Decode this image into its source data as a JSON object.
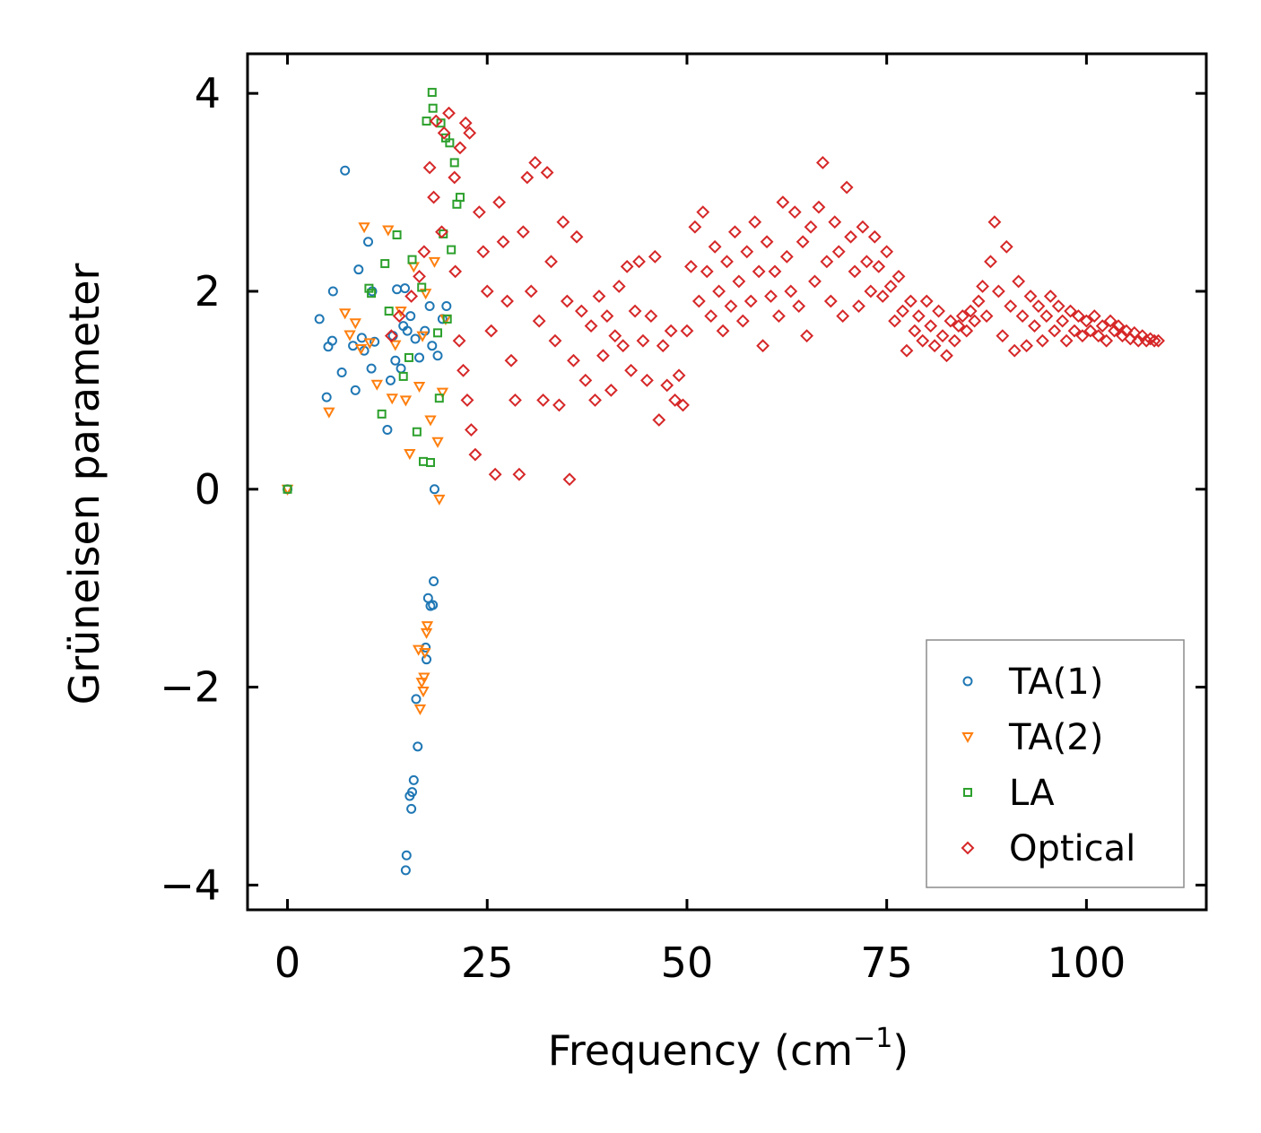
{
  "chart_data": {
    "type": "scatter",
    "title": "",
    "xlabel": "Frequency (cm",
    "xlabel_sup": "−1",
    "xlabel_end": ")",
    "ylabel": "Grüneisen parameter",
    "xlim": [
      -5,
      115
    ],
    "ylim": [
      -4.25,
      4.4
    ],
    "xticks": [
      0,
      25,
      50,
      75,
      100
    ],
    "yticks": [
      -4,
      -2,
      0,
      2,
      4
    ],
    "xtick_labels": [
      "0",
      "25",
      "50",
      "75",
      "100"
    ],
    "ytick_labels": [
      "−4",
      "−2",
      "0",
      "2",
      "4"
    ],
    "grid": false,
    "legend_position": "lower-right",
    "series": [
      {
        "name": "TA(1)",
        "marker": "circle",
        "color": "#1f77b4",
        "points": [
          [
            0,
            0
          ],
          [
            4,
            1.72
          ],
          [
            4.9,
            0.93
          ],
          [
            5.1,
            1.44
          ],
          [
            5.6,
            1.5
          ],
          [
            5.7,
            2.0
          ],
          [
            6.8,
            1.18
          ],
          [
            7.2,
            3.22
          ],
          [
            8.2,
            1.45
          ],
          [
            8.5,
            1.0
          ],
          [
            8.9,
            2.22
          ],
          [
            9.3,
            1.53
          ],
          [
            9.6,
            1.4
          ],
          [
            10.1,
            2.5
          ],
          [
            10.5,
            1.22
          ],
          [
            10.6,
            2.0
          ],
          [
            10.9,
            1.49
          ],
          [
            12.5,
            0.6
          ],
          [
            12.9,
            1.1
          ],
          [
            13.2,
            1.55
          ],
          [
            13.5,
            1.3
          ],
          [
            13.7,
            2.02
          ],
          [
            14.2,
            1.22
          ],
          [
            14.5,
            1.65
          ],
          [
            14.7,
            2.03
          ],
          [
            15,
            1.6
          ],
          [
            15.4,
            1.75
          ],
          [
            16,
            1.52
          ],
          [
            16.5,
            1.33
          ],
          [
            17.2,
            1.6
          ],
          [
            17.8,
            1.85
          ],
          [
            18.1,
            1.45
          ],
          [
            18.4,
            0.0
          ],
          [
            18.8,
            1.35
          ],
          [
            19.4,
            1.72
          ],
          [
            19.9,
            1.85
          ],
          [
            14.8,
            -3.85
          ],
          [
            14.9,
            -3.7
          ],
          [
            15.3,
            -3.1
          ],
          [
            15.5,
            -3.23
          ],
          [
            15.6,
            -3.06
          ],
          [
            15.8,
            -2.94
          ],
          [
            16.1,
            -2.12
          ],
          [
            16.3,
            -2.6
          ],
          [
            17.3,
            -1.6
          ],
          [
            17.4,
            -1.72
          ],
          [
            17.6,
            -1.1
          ],
          [
            17.9,
            -1.18
          ],
          [
            18.2,
            -1.17
          ],
          [
            18.3,
            -0.93
          ]
        ]
      },
      {
        "name": "TA(2)",
        "marker": "triangle-down",
        "color": "#ff7f0e",
        "points": [
          [
            0,
            0
          ],
          [
            5.2,
            0.78
          ],
          [
            7.2,
            1.78
          ],
          [
            7.8,
            1.56
          ],
          [
            8.5,
            1.68
          ],
          [
            9.2,
            1.42
          ],
          [
            9.6,
            2.65
          ],
          [
            10.3,
            1.48
          ],
          [
            11.2,
            1.06
          ],
          [
            12.6,
            2.62
          ],
          [
            13.1,
            0.92
          ],
          [
            13.5,
            1.46
          ],
          [
            14.2,
            1.8
          ],
          [
            14.8,
            0.9
          ],
          [
            15.3,
            0.36
          ],
          [
            15.8,
            2.25
          ],
          [
            16.5,
            1.04
          ],
          [
            16.9,
            1.55
          ],
          [
            17.3,
            1.98
          ],
          [
            17.9,
            0.7
          ],
          [
            18.4,
            2.3
          ],
          [
            18.8,
            0.48
          ],
          [
            19.0,
            -0.1
          ],
          [
            19.4,
            0.98
          ],
          [
            19.8,
            1.72
          ],
          [
            16.4,
            -1.62
          ],
          [
            16.6,
            -2.22
          ],
          [
            16.8,
            -1.95
          ],
          [
            17.0,
            -2.04
          ],
          [
            17.1,
            -1.9
          ],
          [
            17.2,
            -1.65
          ],
          [
            17.4,
            -1.45
          ],
          [
            17.5,
            -1.38
          ]
        ]
      },
      {
        "name": "LA",
        "marker": "square",
        "color": "#2ca02c",
        "points": [
          [
            0,
            0
          ],
          [
            10.2,
            2.03
          ],
          [
            10.5,
            1.98
          ],
          [
            11.8,
            0.76
          ],
          [
            12.2,
            2.28
          ],
          [
            12.7,
            1.8
          ],
          [
            13.7,
            2.57
          ],
          [
            14.5,
            1.14
          ],
          [
            15.2,
            1.33
          ],
          [
            15.6,
            2.32
          ],
          [
            16.2,
            0.58
          ],
          [
            16.8,
            2.04
          ],
          [
            17.0,
            0.28
          ],
          [
            17.4,
            3.72
          ],
          [
            17.9,
            0.27
          ],
          [
            18.1,
            4.01
          ],
          [
            18.2,
            3.85
          ],
          [
            18.8,
            1.58
          ],
          [
            19.0,
            0.92
          ],
          [
            19.2,
            3.7
          ],
          [
            19.5,
            2.58
          ],
          [
            19.8,
            3.55
          ],
          [
            20.0,
            1.72
          ],
          [
            20.3,
            3.5
          ],
          [
            20.5,
            2.42
          ],
          [
            20.9,
            3.3
          ],
          [
            21.2,
            2.88
          ],
          [
            21.6,
            2.95
          ]
        ]
      },
      {
        "name": "Optical",
        "marker": "diamond",
        "color": "#d62728",
        "points": [
          [
            13,
            1.55
          ],
          [
            14,
            1.75
          ],
          [
            15.5,
            1.95
          ],
          [
            16.5,
            2.15
          ],
          [
            17.1,
            2.4
          ],
          [
            17.8,
            3.25
          ],
          [
            18.3,
            2.95
          ],
          [
            18.6,
            3.72
          ],
          [
            19.3,
            2.6
          ],
          [
            19.6,
            3.6
          ],
          [
            20.2,
            3.8
          ],
          [
            20.9,
            3.15
          ],
          [
            21.6,
            3.45
          ],
          [
            22.3,
            3.7
          ],
          [
            22.8,
            3.6
          ],
          [
            21,
            2.2
          ],
          [
            21.5,
            1.5
          ],
          [
            22,
            1.2
          ],
          [
            22.5,
            0.9
          ],
          [
            23,
            0.6
          ],
          [
            23.5,
            0.35
          ],
          [
            24,
            2.8
          ],
          [
            24.5,
            2.4
          ],
          [
            25,
            2.0
          ],
          [
            25.5,
            1.6
          ],
          [
            26,
            0.15
          ],
          [
            26.5,
            2.9
          ],
          [
            27,
            2.5
          ],
          [
            27.5,
            1.9
          ],
          [
            28,
            1.3
          ],
          [
            28.5,
            0.9
          ],
          [
            29,
            0.15
          ],
          [
            29.5,
            2.6
          ],
          [
            30,
            3.15
          ],
          [
            30.5,
            2.0
          ],
          [
            31,
            3.3
          ],
          [
            31.5,
            1.7
          ],
          [
            32,
            0.9
          ],
          [
            32.5,
            3.2
          ],
          [
            33,
            2.3
          ],
          [
            33.5,
            1.5
          ],
          [
            34,
            0.85
          ],
          [
            34.5,
            2.7
          ],
          [
            35,
            1.9
          ],
          [
            35.3,
            0.1
          ],
          [
            35.8,
            1.3
          ],
          [
            36.2,
            2.55
          ],
          [
            36.8,
            1.8
          ],
          [
            37.3,
            1.1
          ],
          [
            38,
            1.65
          ],
          [
            38.5,
            0.9
          ],
          [
            39,
            1.95
          ],
          [
            39.5,
            1.35
          ],
          [
            40,
            1.75
          ],
          [
            40.5,
            1.0
          ],
          [
            41,
            1.55
          ],
          [
            41.5,
            2.05
          ],
          [
            42,
            1.45
          ],
          [
            42.5,
            2.25
          ],
          [
            43,
            1.2
          ],
          [
            43.5,
            1.8
          ],
          [
            44,
            2.3
          ],
          [
            44.5,
            1.5
          ],
          [
            45,
            1.1
          ],
          [
            45.5,
            1.75
          ],
          [
            46,
            2.35
          ],
          [
            46.5,
            0.7
          ],
          [
            47,
            1.45
          ],
          [
            47.5,
            1.05
          ],
          [
            48,
            1.6
          ],
          [
            48.5,
            0.9
          ],
          [
            49,
            1.15
          ],
          [
            49.5,
            0.85
          ],
          [
            50,
            1.6
          ],
          [
            50.5,
            2.25
          ],
          [
            51,
            2.65
          ],
          [
            51.5,
            1.9
          ],
          [
            52,
            2.8
          ],
          [
            52.5,
            2.2
          ],
          [
            53,
            1.75
          ],
          [
            53.5,
            2.45
          ],
          [
            54,
            2.0
          ],
          [
            54.5,
            1.6
          ],
          [
            55,
            2.3
          ],
          [
            55.5,
            1.85
          ],
          [
            56,
            2.6
          ],
          [
            56.5,
            2.1
          ],
          [
            57,
            1.7
          ],
          [
            57.5,
            2.4
          ],
          [
            58,
            1.9
          ],
          [
            58.5,
            2.7
          ],
          [
            59,
            2.2
          ],
          [
            59.5,
            1.45
          ],
          [
            60,
            2.5
          ],
          [
            60.5,
            1.95
          ],
          [
            61,
            2.2
          ],
          [
            61.5,
            1.75
          ],
          [
            62,
            2.9
          ],
          [
            62.5,
            2.35
          ],
          [
            63,
            2.0
          ],
          [
            63.5,
            2.8
          ],
          [
            64,
            1.85
          ],
          [
            64.5,
            2.5
          ],
          [
            65,
            1.55
          ],
          [
            65.5,
            2.65
          ],
          [
            66,
            2.1
          ],
          [
            66.5,
            2.85
          ],
          [
            67,
            3.3
          ],
          [
            67.5,
            2.3
          ],
          [
            68,
            1.9
          ],
          [
            68.5,
            2.7
          ],
          [
            69,
            2.4
          ],
          [
            69.5,
            1.75
          ],
          [
            70,
            3.05
          ],
          [
            70.5,
            2.55
          ],
          [
            71,
            2.2
          ],
          [
            71.5,
            1.85
          ],
          [
            72,
            2.65
          ],
          [
            72.5,
            2.3
          ],
          [
            73,
            2.0
          ],
          [
            73.5,
            2.55
          ],
          [
            74,
            2.25
          ],
          [
            74.5,
            1.95
          ],
          [
            75,
            2.4
          ],
          [
            75.5,
            2.05
          ],
          [
            76,
            1.7
          ],
          [
            76.5,
            2.15
          ],
          [
            77,
            1.8
          ],
          [
            77.5,
            1.4
          ],
          [
            78,
            1.9
          ],
          [
            78.5,
            1.6
          ],
          [
            79,
            1.75
          ],
          [
            79.5,
            1.5
          ],
          [
            80,
            1.9
          ],
          [
            80.5,
            1.65
          ],
          [
            81,
            1.45
          ],
          [
            81.5,
            1.8
          ],
          [
            82,
            1.55
          ],
          [
            82.5,
            1.35
          ],
          [
            83,
            1.7
          ],
          [
            83.5,
            1.5
          ],
          [
            84,
            1.65
          ],
          [
            84.5,
            1.75
          ],
          [
            85,
            1.6
          ],
          [
            85.5,
            1.8
          ],
          [
            86,
            1.7
          ],
          [
            86.5,
            1.9
          ],
          [
            87,
            2.05
          ],
          [
            87.5,
            1.75
          ],
          [
            88,
            2.3
          ],
          [
            88.5,
            2.7
          ],
          [
            89,
            2.0
          ],
          [
            89.5,
            1.55
          ],
          [
            90,
            2.45
          ],
          [
            90.5,
            1.85
          ],
          [
            91,
            1.4
          ],
          [
            91.5,
            2.1
          ],
          [
            92,
            1.75
          ],
          [
            92.5,
            1.45
          ],
          [
            93,
            1.95
          ],
          [
            93.5,
            1.65
          ],
          [
            94,
            1.85
          ],
          [
            94.5,
            1.5
          ],
          [
            95,
            1.75
          ],
          [
            95.5,
            1.95
          ],
          [
            96,
            1.6
          ],
          [
            96.5,
            1.85
          ],
          [
            97,
            1.7
          ],
          [
            97.5,
            1.5
          ],
          [
            98,
            1.8
          ],
          [
            98.5,
            1.6
          ],
          [
            99,
            1.75
          ],
          [
            99.5,
            1.55
          ],
          [
            100,
            1.7
          ],
          [
            100.5,
            1.6
          ],
          [
            101,
            1.75
          ],
          [
            101.5,
            1.55
          ],
          [
            102,
            1.65
          ],
          [
            102.5,
            1.5
          ],
          [
            103,
            1.7
          ],
          [
            103.5,
            1.6
          ],
          [
            104,
            1.65
          ],
          [
            104.5,
            1.55
          ],
          [
            105,
            1.6
          ],
          [
            105.5,
            1.52
          ],
          [
            106,
            1.58
          ],
          [
            106.5,
            1.5
          ],
          [
            107,
            1.55
          ],
          [
            107.5,
            1.5
          ],
          [
            108,
            1.52
          ],
          [
            108.5,
            1.5
          ],
          [
            109,
            1.5
          ]
        ]
      }
    ]
  }
}
